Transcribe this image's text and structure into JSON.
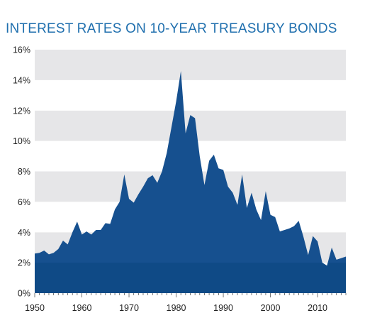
{
  "chart_data": {
    "type": "area",
    "title": "INTEREST RATES ON 10-YEAR TREASURY BONDS",
    "xlabel": "",
    "ylabel": "",
    "xlim": [
      1950,
      2016
    ],
    "ylim": [
      0,
      16
    ],
    "x_ticks": [
      1950,
      1960,
      1970,
      1980,
      1990,
      2000,
      2010
    ],
    "y_ticks": [
      0,
      2,
      4,
      6,
      8,
      10,
      12,
      14,
      16
    ],
    "y_tick_labels": [
      "0%",
      "2%",
      "4%",
      "6%",
      "8%",
      "10%",
      "12%",
      "14%",
      "16%"
    ],
    "grid": "horizontal alternating bands",
    "legend": "none",
    "colors": {
      "fill_upper": "#16508f",
      "fill_lower": "#0f4a86",
      "band_gray": "#e6e6e8",
      "band_white": "#ffffff",
      "title": "#1f6fae"
    },
    "series": [
      {
        "x": [
          1950,
          1951,
          1952,
          1953,
          1954,
          1955,
          1956,
          1957,
          1958,
          1959,
          1960,
          1961,
          1962,
          1963,
          1964,
          1965,
          1966,
          1967,
          1968,
          1969,
          1970,
          1971,
          1972,
          1973,
          1974,
          1975,
          1976,
          1977,
          1978,
          1979,
          1980,
          1981,
          1982,
          1983,
          1984,
          1985,
          1986,
          1987,
          1988,
          1989,
          1990,
          1991,
          1992,
          1993,
          1994,
          1995,
          1996,
          1997,
          1998,
          1999,
          2000,
          2001,
          2002,
          2003,
          2004,
          2005,
          2006,
          2007,
          2008,
          2009,
          2010,
          2011,
          2012,
          2013,
          2014,
          2015,
          2016
        ],
        "values": [
          2.6,
          2.65,
          2.8,
          2.55,
          2.65,
          2.9,
          3.45,
          3.2,
          4.0,
          4.7,
          3.85,
          4.05,
          3.85,
          4.15,
          4.15,
          4.6,
          4.55,
          5.5,
          6.0,
          7.8,
          6.2,
          5.95,
          6.5,
          7.0,
          7.55,
          7.75,
          7.25,
          8.0,
          9.2,
          10.9,
          12.6,
          14.6,
          10.5,
          11.7,
          11.5,
          9.0,
          7.1,
          8.7,
          9.1,
          8.2,
          8.1,
          7.0,
          6.6,
          5.8,
          7.8,
          5.6,
          6.6,
          5.5,
          4.8,
          6.7,
          5.15,
          5.0,
          4.05,
          4.15,
          4.25,
          4.4,
          4.75,
          3.7,
          2.5,
          3.75,
          3.4,
          2.0,
          1.8,
          3.0,
          2.2,
          2.3,
          2.4
        ]
      }
    ]
  }
}
